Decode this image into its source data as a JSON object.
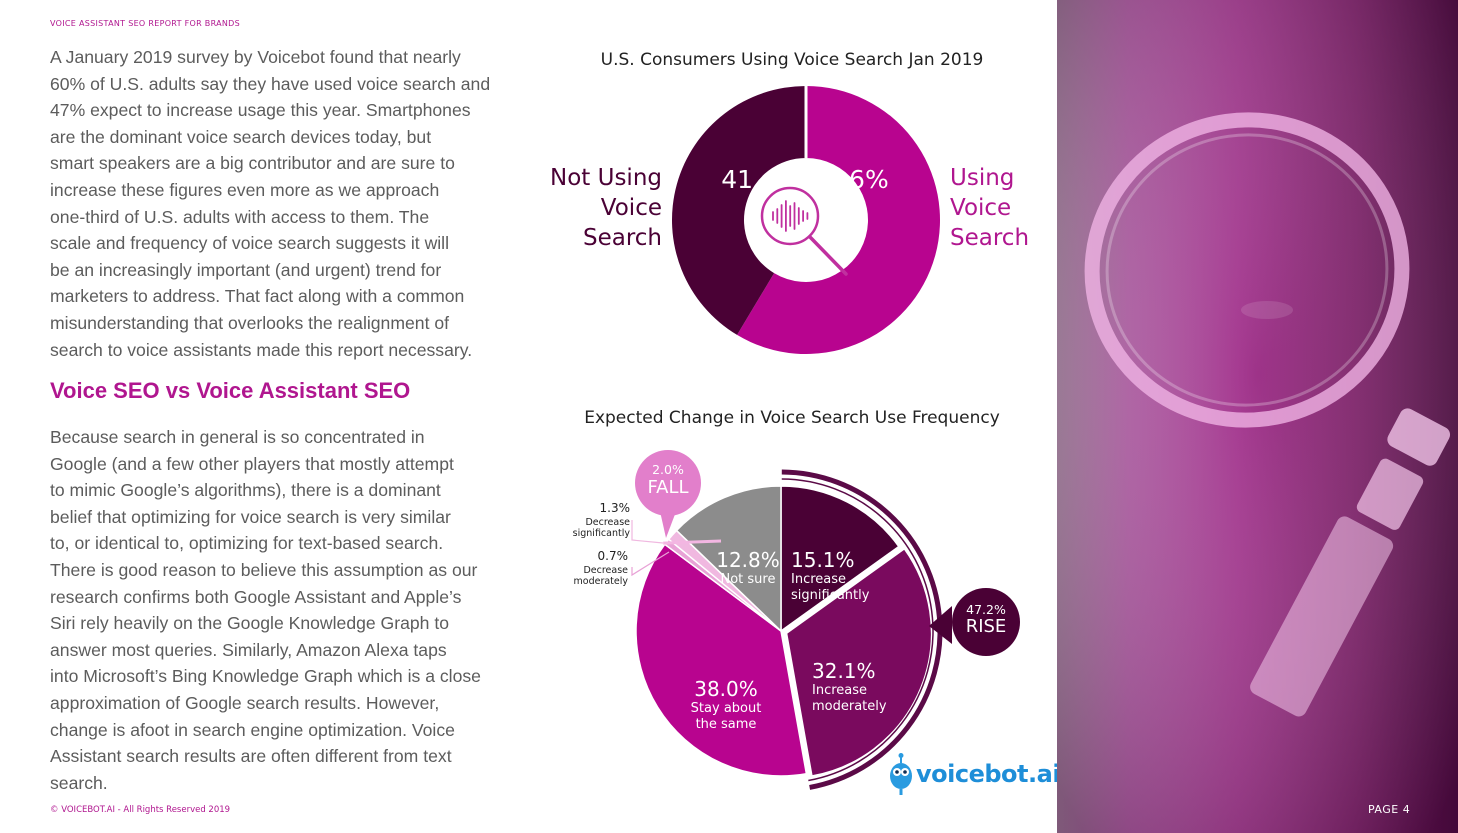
{
  "header": {
    "title": "VOICE ASSISTANT SEO REPORT FOR BRANDS"
  },
  "body": {
    "paragraph1_lines": [
      "A January 2019 survey by Voicebot found that nearly",
      "60% of U.S. adults say they have used voice search and",
      "47% expect to increase usage this year. Smartphones",
      "are the dominant voice search devices today, but",
      "smart speakers are a big contributor and are sure to",
      "increase these figures even more as we approach",
      "one-third of U.S. adults with access to them. The",
      "scale and frequency of voice search suggests it will",
      "be an increasingly important (and urgent) trend for",
      "marketers to address. That fact along with a common",
      "misunderstanding that overlooks the realignment of",
      "search to voice assistants made this report necessary."
    ],
    "subheading": "Voice SEO vs Voice Assistant SEO",
    "paragraph2_lines": [
      "Because search in general is so concentrated in",
      "Google (and a few other players that mostly attempt",
      "to mimic Google’s algorithms), there is a dominant",
      "belief that optimizing for voice search is very similar",
      "to, or identical to, optimizing for text-based search.",
      "There is good reason to believe this assumption as our",
      "research confirms both Google Assistant and Apple’s",
      "Siri rely heavily on the Google Knowledge Graph to",
      "answer most queries. Similarly, Amazon Alexa taps",
      "into Microsoft’s Bing Knowledge Graph which is a close",
      "approximation of Google search results. However,",
      "change is afoot in search engine optimization. Voice",
      "Assistant search results are often different from text",
      "search."
    ]
  },
  "footer": {
    "copyright": "© VOICEBOT.AI - All Rights Reserved 2019",
    "page": "PAGE 4"
  },
  "logo": {
    "text": "voicebot.ai"
  },
  "colors": {
    "accent": "#b0168f",
    "dark_plum": "#4a0135",
    "magenta": "#b8048f",
    "mid_plum": "#7a0a5e",
    "grey": "#8c8c8c"
  },
  "chart_data": [
    {
      "type": "pie",
      "variant": "donut",
      "title": "U.S. Consumers Using Voice Search Jan 2019",
      "slices": [
        {
          "label": "Using Voice Search",
          "label_lines": [
            "Using",
            "Voice",
            "Search"
          ],
          "value": 58.6,
          "value_label": "58.6%",
          "color": "#b8048f"
        },
        {
          "label": "Not Using Voice Search",
          "label_lines": [
            "Not Using",
            "Voice",
            "Search"
          ],
          "value": 41.4,
          "value_label": "41.4%",
          "color": "#4a0135"
        }
      ],
      "center_icon": "voice-search-magnifier-icon"
    },
    {
      "type": "pie",
      "title": "Expected Change in Voice Search Use Frequency",
      "slices": [
        {
          "label_lines": [
            "Increase",
            "significantly"
          ],
          "value": 15.1,
          "value_label": "15.1%",
          "color": "#4a0135"
        },
        {
          "label_lines": [
            "Increase",
            "moderately"
          ],
          "value": 32.1,
          "value_label": "32.1%",
          "color": "#7a0a5e"
        },
        {
          "label_lines": [
            "Stay about",
            "the same"
          ],
          "value": 38.0,
          "value_label": "38.0%",
          "color": "#b8048f"
        },
        {
          "label_lines": [
            "Decrease",
            "moderately"
          ],
          "value": 0.7,
          "value_label": "0.7%",
          "color": "#e8a2d6"
        },
        {
          "label_lines": [
            "Decrease",
            "significantly"
          ],
          "value": 1.3,
          "value_label": "1.3%",
          "color": "#f0b8e0"
        },
        {
          "label_lines": [
            "Not sure"
          ],
          "value": 12.8,
          "value_label": "12.8%",
          "color": "#8c8c8c"
        }
      ],
      "callouts": [
        {
          "value_label": "47.2%",
          "label": "RISE",
          "color": "#4a0135"
        },
        {
          "value_label": "2.0%",
          "label": "FALL",
          "color": "#e27fcb"
        }
      ]
    }
  ]
}
